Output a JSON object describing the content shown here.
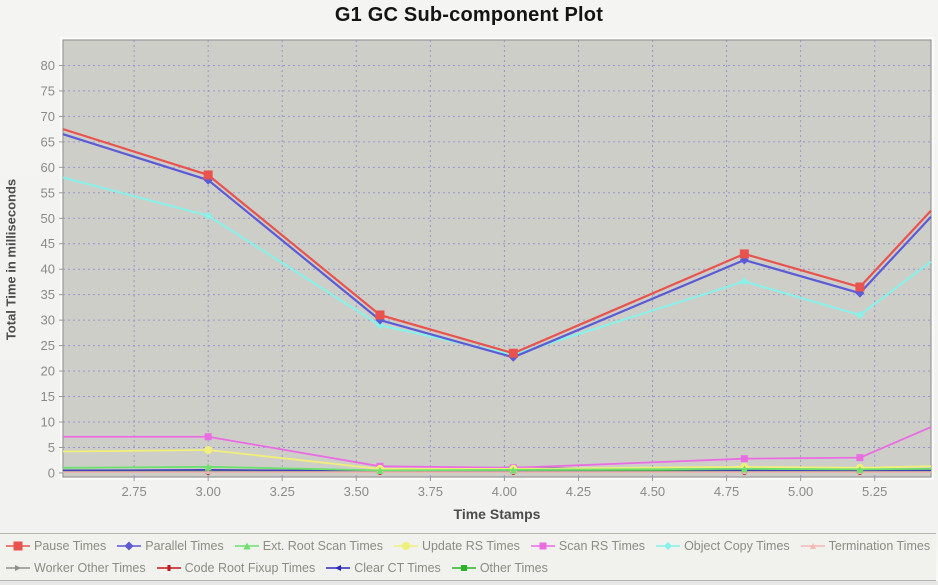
{
  "chart_data": {
    "type": "line",
    "title": "G1 GC Sub-component Plot",
    "xlabel": "Time Stamps",
    "ylabel": "Total Time in milliseconds",
    "xlim": [
      2.51,
      5.44
    ],
    "ylim": [
      -0.8,
      85
    ],
    "grid": true,
    "legend_position": "bottom",
    "x_ticks": [
      "2.75",
      "3.00",
      "3.25",
      "3.50",
      "3.75",
      "4.00",
      "4.25",
      "4.50",
      "4.75",
      "5.00",
      "5.25"
    ],
    "x_tick_values": [
      2.75,
      3.0,
      3.25,
      3.5,
      3.75,
      4.0,
      4.25,
      4.5,
      4.75,
      5.0,
      5.25
    ],
    "y_ticks": [
      0,
      5,
      10,
      15,
      20,
      25,
      30,
      35,
      40,
      45,
      50,
      55,
      60,
      65,
      70,
      75,
      80
    ],
    "x": [
      2.51,
      3.0,
      3.58,
      4.03,
      4.81,
      5.2,
      5.44
    ],
    "series": [
      {
        "name": "pause",
        "label": "Pause Times",
        "color": "#e8534e",
        "marker": "square",
        "marker_size": 9,
        "line_width": 2.2,
        "values": [
          67.5,
          58.5,
          31,
          23.5,
          43,
          36.5,
          51.5
        ]
      },
      {
        "name": "parallel",
        "label": "Parallel Times",
        "color": "#5b5bd6",
        "marker": "diamond",
        "marker_size": 9,
        "line_width": 2.2,
        "values": [
          66.5,
          57.5,
          30,
          22.7,
          41.8,
          35.3,
          50.3
        ]
      },
      {
        "name": "ext-root-scan",
        "label": "Ext. Root Scan Times",
        "color": "#6ee06e",
        "marker": "triangle-up",
        "marker_size": 7,
        "line_width": 1.8,
        "values": [
          1.0,
          1.2,
          0.5,
          0.6,
          0.8,
          0.7,
          0.8
        ]
      },
      {
        "name": "update-rs",
        "label": "Update RS Times",
        "color": "#f0ef7a",
        "marker": "circle",
        "marker_size": 8,
        "line_width": 1.8,
        "values": [
          4.2,
          4.5,
          0.8,
          0.8,
          1.2,
          1.0,
          1.3
        ]
      },
      {
        "name": "scan-rs",
        "label": "Scan RS Times",
        "color": "#ea6ce2",
        "marker": "square",
        "marker_size": 7,
        "line_width": 1.8,
        "values": [
          7.1,
          7.1,
          1.3,
          1.0,
          2.8,
          3.0,
          9.0
        ]
      },
      {
        "name": "object-copy",
        "label": "Object Copy Times",
        "color": "#86f2ea",
        "marker": "diamond",
        "marker_size": 8,
        "line_width": 2.0,
        "values": [
          58,
          50.5,
          29,
          23.2,
          37.6,
          31,
          41.5
        ]
      },
      {
        "name": "termination",
        "label": "Termination Times",
        "color": "#f2b8b4",
        "marker": "triangle-up",
        "marker_size": 4,
        "line_width": 1.4,
        "values": [
          0.15,
          0.15,
          0.15,
          0.15,
          0.15,
          0.15,
          0.15
        ]
      },
      {
        "name": "worker-other",
        "label": "Worker Other Times",
        "color": "#8f8f8f",
        "marker": "arrow-right",
        "marker_size": 5,
        "line_width": 1.4,
        "values": [
          0.3,
          0.3,
          0.3,
          0.3,
          0.3,
          0.3,
          0.3
        ]
      },
      {
        "name": "code-root-fixup",
        "label": "Code Root Fixup Times",
        "color": "#c01818",
        "marker": "vbar",
        "marker_size": 6,
        "line_width": 1.4,
        "values": [
          0.2,
          0.2,
          0.2,
          0.2,
          0.2,
          0.2,
          0.2
        ]
      },
      {
        "name": "clear-ct",
        "label": "Clear CT Times",
        "color": "#2828c0",
        "marker": "triangle-left",
        "marker_size": 5,
        "line_width": 1.4,
        "values": [
          0.5,
          0.6,
          0.4,
          1.1,
          0.5,
          0.5,
          0.5
        ]
      },
      {
        "name": "other",
        "label": "Other Times",
        "color": "#28b428",
        "marker": "square",
        "marker_size": 5,
        "line_width": 2.4,
        "values": [
          0.4,
          0.4,
          0.4,
          0.4,
          0.4,
          0.4,
          0.4
        ]
      }
    ],
    "legend_rows": [
      [
        "pause",
        "parallel",
        "ext-root-scan",
        "update-rs",
        "scan-rs",
        "object-copy",
        "termination"
      ],
      [
        "worker-other",
        "code-root-fixup",
        "clear-ct",
        "other"
      ]
    ],
    "colors": {
      "plot_background": "#cecec9",
      "grid": "#9191cc",
      "plot_border": "#8e8e8e",
      "tick_label": "#8a8a8a",
      "axis_title": "#4c4c4c",
      "legend_text": "#8c8c82",
      "page_background": "#f2f2f0"
    }
  }
}
